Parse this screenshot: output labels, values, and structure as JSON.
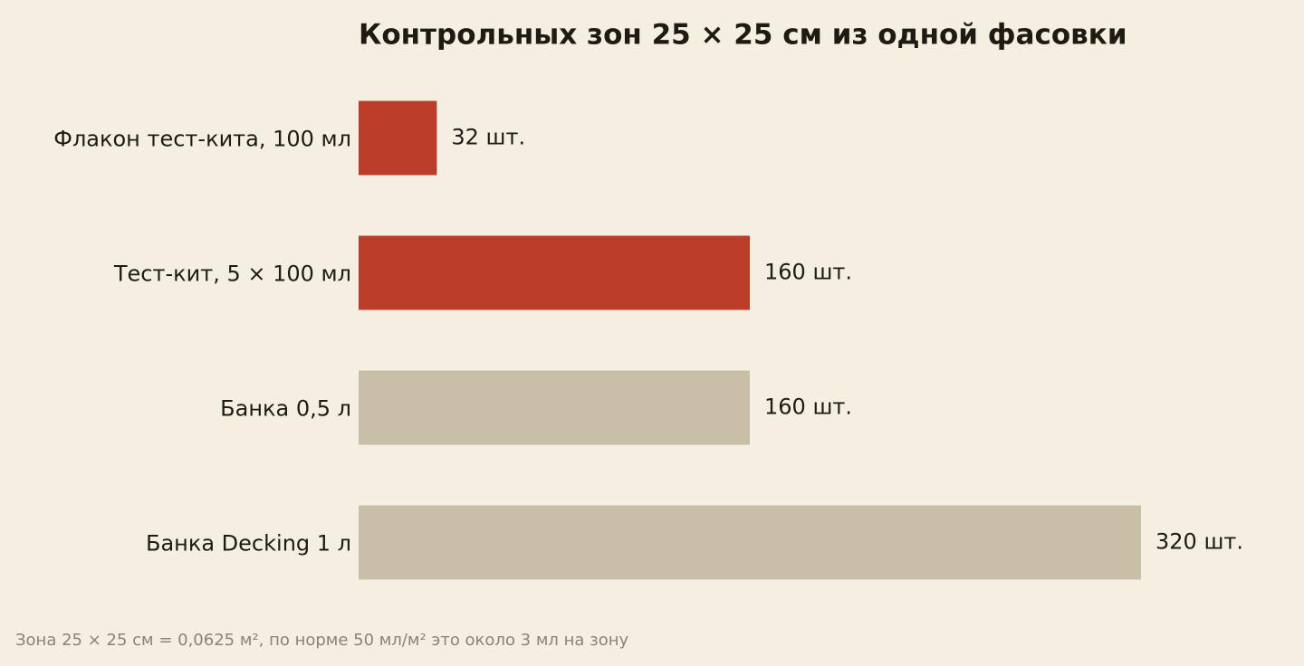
{
  "chart_data": {
    "type": "barh",
    "title": "Контрольных зон 25 × 25 см из одной фасовки",
    "categories": [
      "Флакон тест-кита, 100 мл",
      "Тест-кит, 5 × 100 мл",
      "Банка 0,5 л",
      "Банка Decking 1 л"
    ],
    "values": [
      32,
      160,
      160,
      320
    ],
    "value_labels": [
      "32 шт.",
      "160 шт.",
      "160 шт.",
      "320 шт."
    ],
    "colors": [
      "#bb3d27",
      "#bb3d27",
      "#c9bfa7",
      "#c9bfa7"
    ],
    "footnote": "Зона 25 × 25 см = 0,0625 м², по норме 50 мл/м² это около 3 мл на зону"
  }
}
